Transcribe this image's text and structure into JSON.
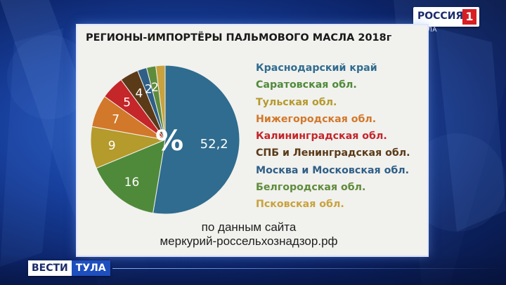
{
  "broadcast": {
    "channel": "РОССИЯ",
    "channel_number": "1",
    "region_tag": "ТУЛА",
    "program": "ВЕСТИ",
    "program_region": "ТУЛА"
  },
  "source": {
    "line1": "по данным сайта",
    "line2": "меркурий-россельхознадзор.рф"
  },
  "colors": {
    "card": "#f1f1ee",
    "blue": "#2f6c8f",
    "green": "#4f8a3a",
    "olive": "#b59a2c",
    "orange": "#d2782a",
    "red": "#c4262a",
    "brown": "#5b3a18",
    "blue2": "#2f5f86",
    "green2": "#5f8c3c",
    "gold": "#c9a23e"
  },
  "chart_data": {
    "type": "pie",
    "title": "РЕГИОНЫ-ИМПОРТЁРЫ ПАЛЬМОВОГО МАСЛА 2018г",
    "center_label": "%",
    "categories": [
      "Краснодарский край",
      "Саратовская обл.",
      "Тульская обл.",
      "Нижегородская обл.",
      "Калининградская обл.",
      "СПБ и Ленинградская обл.",
      "Москва и Московская обл.",
      "Белгородская обл.",
      "Псковская обл."
    ],
    "values": [
      52.2,
      16,
      9,
      7,
      5,
      4,
      2,
      2,
      2
    ],
    "value_labels": [
      "52,2",
      "16",
      "9",
      "7",
      "5",
      "4",
      "2",
      "2",
      ""
    ],
    "slice_colors": [
      "#2f6c8f",
      "#4f8a3a",
      "#b59a2c",
      "#d2782a",
      "#c4262a",
      "#5b3a18",
      "#2f5f86",
      "#5f8c3c",
      "#c9a23e"
    ],
    "legend_colors": [
      "#2f6c8f",
      "#4f8a3a",
      "#b59a2c",
      "#d2782a",
      "#c4262a",
      "#5b3a18",
      "#2f5f86",
      "#5f8c3c",
      "#c9a23e"
    ],
    "legend_position": "right",
    "start": "12 o'clock",
    "direction": "clockwise"
  }
}
